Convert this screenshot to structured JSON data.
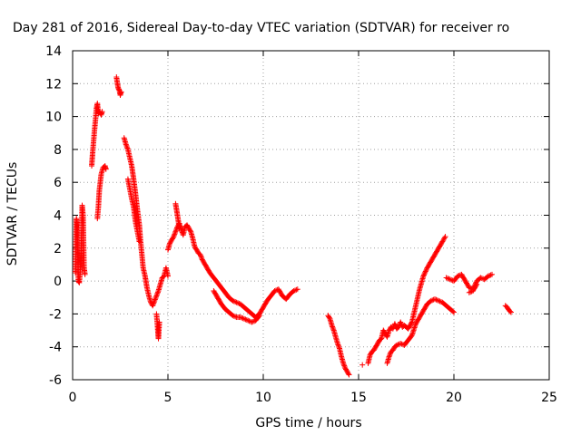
{
  "chart_data": {
    "type": "scatter",
    "title": "Day 281 of 2016, Sidereal Day-to-day VTEC variation (SDTVAR) for receiver ro",
    "xlabel": "GPS time / hours",
    "ylabel": "SDTVAR / TECUs",
    "xlim": [
      0,
      25
    ],
    "ylim": [
      -6,
      14
    ],
    "x_ticks": [
      0,
      5,
      10,
      15,
      20,
      25
    ],
    "y_ticks": [
      -6,
      -4,
      -2,
      0,
      2,
      4,
      6,
      8,
      10,
      12,
      14
    ],
    "grid": true,
    "marker": "+",
    "colors": {
      "points": "#ff0000",
      "grid": "#a0a0a0",
      "axes": "#000000"
    },
    "series": [
      {
        "segments": [
          [
            [
              0.15,
              0.5
            ],
            [
              0.2,
              3.8
            ],
            [
              0.25,
              3.4
            ],
            [
              0.3,
              0.0
            ],
            [
              0.35,
              -0.1
            ],
            [
              0.4,
              0.6
            ],
            [
              0.45,
              1.6
            ],
            [
              0.5,
              4.6
            ],
            [
              0.55,
              4.0
            ],
            [
              0.6,
              0.8
            ],
            [
              0.65,
              0.4
            ]
          ],
          [
            [
              1.0,
              7.0
            ],
            [
              1.05,
              7.8
            ],
            [
              1.1,
              8.5
            ],
            [
              1.15,
              9.2
            ],
            [
              1.2,
              9.8
            ],
            [
              1.25,
              10.5
            ],
            [
              1.3,
              10.8
            ],
            [
              1.35,
              10.2
            ],
            [
              1.4,
              10.3
            ],
            [
              1.5,
              10.1
            ],
            [
              1.55,
              10.3
            ]
          ],
          [
            [
              1.3,
              3.8
            ],
            [
              1.35,
              4.5
            ],
            [
              1.4,
              5.5
            ],
            [
              1.5,
              6.5
            ],
            [
              1.6,
              6.9
            ],
            [
              1.7,
              7.0
            ],
            [
              1.75,
              6.8
            ]
          ],
          [
            [
              2.3,
              12.4
            ],
            [
              2.35,
              12.0
            ],
            [
              2.4,
              11.7
            ],
            [
              2.45,
              11.6
            ],
            [
              2.5,
              11.3
            ],
            [
              2.55,
              11.5
            ]
          ],
          [
            [
              2.7,
              8.7
            ],
            [
              2.8,
              8.3
            ],
            [
              2.9,
              8.0
            ],
            [
              3.0,
              7.5
            ],
            [
              3.1,
              7.0
            ],
            [
              3.2,
              6.2
            ],
            [
              3.3,
              5.3
            ],
            [
              3.4,
              4.3
            ],
            [
              3.5,
              3.4
            ],
            [
              3.55,
              2.6
            ],
            [
              3.6,
              2.0
            ],
            [
              3.65,
              1.4
            ],
            [
              3.7,
              0.8
            ],
            [
              3.8,
              0.3
            ],
            [
              3.9,
              -0.4
            ],
            [
              4.0,
              -0.9
            ],
            [
              4.1,
              -1.3
            ],
            [
              4.2,
              -1.5
            ],
            [
              4.3,
              -1.2
            ],
            [
              4.4,
              -0.9
            ],
            [
              4.5,
              -0.6
            ],
            [
              4.6,
              -0.2
            ],
            [
              4.7,
              0.2
            ],
            [
              4.8,
              0.3
            ],
            [
              4.9,
              0.8
            ],
            [
              5.0,
              0.3
            ]
          ],
          [
            [
              2.9,
              6.2
            ],
            [
              3.0,
              5.6
            ],
            [
              3.1,
              5.0
            ],
            [
              3.2,
              4.5
            ],
            [
              3.3,
              3.6
            ],
            [
              3.4,
              3.0
            ],
            [
              3.5,
              2.4
            ]
          ],
          [
            [
              4.4,
              -2.0
            ],
            [
              4.45,
              -2.7
            ],
            [
              4.5,
              -3.5
            ],
            [
              4.55,
              -2.5
            ]
          ],
          [
            [
              5.0,
              1.9
            ],
            [
              5.1,
              2.3
            ],
            [
              5.2,
              2.5
            ],
            [
              5.3,
              2.7
            ],
            [
              5.4,
              3.0
            ],
            [
              5.5,
              3.3
            ],
            [
              5.6,
              3.5
            ],
            [
              5.7,
              3.1
            ],
            [
              5.8,
              2.8
            ],
            [
              5.9,
              3.3
            ],
            [
              6.0,
              3.4
            ],
            [
              6.1,
              3.2
            ],
            [
              6.2,
              3.0
            ],
            [
              6.3,
              2.6
            ],
            [
              6.4,
              2.1
            ],
            [
              6.5,
              1.9
            ],
            [
              6.6,
              1.7
            ],
            [
              6.7,
              1.6
            ],
            [
              6.8,
              1.3
            ],
            [
              6.9,
              1.1
            ],
            [
              7.0,
              0.9
            ],
            [
              7.2,
              0.5
            ],
            [
              7.4,
              0.2
            ],
            [
              7.6,
              -0.1
            ],
            [
              7.8,
              -0.4
            ],
            [
              8.0,
              -0.7
            ],
            [
              8.2,
              -1.0
            ],
            [
              8.4,
              -1.2
            ],
            [
              8.6,
              -1.3
            ],
            [
              8.8,
              -1.4
            ],
            [
              9.0,
              -1.6
            ],
            [
              9.2,
              -1.8
            ],
            [
              9.4,
              -2.0
            ],
            [
              9.6,
              -2.2
            ],
            [
              9.8,
              -2.0
            ],
            [
              10.0,
              -1.6
            ],
            [
              10.2,
              -1.2
            ],
            [
              10.4,
              -0.9
            ],
            [
              10.6,
              -0.6
            ],
            [
              10.8,
              -0.5
            ],
            [
              11.0,
              -0.9
            ],
            [
              11.2,
              -1.1
            ],
            [
              11.4,
              -0.8
            ],
            [
              11.6,
              -0.6
            ],
            [
              11.8,
              -0.5
            ]
          ],
          [
            [
              5.4,
              4.7
            ],
            [
              5.5,
              4.0
            ],
            [
              5.6,
              3.2
            ]
          ],
          [
            [
              7.4,
              -0.6
            ],
            [
              7.6,
              -1.0
            ],
            [
              7.8,
              -1.4
            ],
            [
              8.0,
              -1.7
            ],
            [
              8.2,
              -1.9
            ],
            [
              8.4,
              -2.1
            ],
            [
              8.6,
              -2.2
            ],
            [
              8.8,
              -2.2
            ],
            [
              9.0,
              -2.3
            ],
            [
              9.2,
              -2.4
            ],
            [
              9.4,
              -2.5
            ],
            [
              9.6,
              -2.4
            ],
            [
              9.8,
              -2.1
            ]
          ],
          [
            [
              13.4,
              -2.1
            ],
            [
              13.5,
              -2.3
            ],
            [
              13.6,
              -2.7
            ],
            [
              13.7,
              -3.0
            ],
            [
              13.8,
              -3.4
            ],
            [
              13.9,
              -3.8
            ],
            [
              14.0,
              -4.1
            ],
            [
              14.1,
              -4.6
            ],
            [
              14.2,
              -5.0
            ],
            [
              14.3,
              -5.3
            ],
            [
              14.4,
              -5.5
            ],
            [
              14.5,
              -5.7
            ]
          ],
          [
            [
              15.2,
              -5.1
            ]
          ],
          [
            [
              15.5,
              -5.0
            ],
            [
              15.6,
              -4.5
            ],
            [
              15.7,
              -4.3
            ],
            [
              15.8,
              -4.2
            ],
            [
              15.9,
              -4.0
            ],
            [
              16.0,
              -3.8
            ],
            [
              16.1,
              -3.6
            ],
            [
              16.2,
              -3.5
            ],
            [
              16.3,
              -3.0
            ],
            [
              16.4,
              -3.2
            ],
            [
              16.5,
              -3.4
            ],
            [
              16.6,
              -3.0
            ],
            [
              16.7,
              -2.8
            ],
            [
              16.8,
              -2.9
            ],
            [
              16.9,
              -2.6
            ],
            [
              17.0,
              -2.9
            ],
            [
              17.1,
              -2.8
            ],
            [
              17.2,
              -2.5
            ],
            [
              17.3,
              -2.8
            ],
            [
              17.4,
              -2.7
            ],
            [
              17.6,
              -2.9
            ],
            [
              17.8,
              -2.5
            ],
            [
              18.0,
              -1.5
            ],
            [
              18.2,
              -0.5
            ],
            [
              18.4,
              0.3
            ],
            [
              18.6,
              0.8
            ],
            [
              18.8,
              1.2
            ],
            [
              19.0,
              1.6
            ],
            [
              19.2,
              2.0
            ],
            [
              19.4,
              2.4
            ],
            [
              19.55,
              2.7
            ]
          ],
          [
            [
              16.5,
              -5.0
            ],
            [
              16.6,
              -4.6
            ],
            [
              16.7,
              -4.3
            ],
            [
              16.8,
              -4.2
            ],
            [
              16.9,
              -4.0
            ],
            [
              17.0,
              -3.9
            ],
            [
              17.2,
              -3.8
            ],
            [
              17.4,
              -3.9
            ],
            [
              17.6,
              -3.6
            ],
            [
              17.8,
              -3.3
            ],
            [
              18.0,
              -2.6
            ],
            [
              18.2,
              -2.2
            ],
            [
              18.4,
              -1.8
            ],
            [
              18.6,
              -1.4
            ],
            [
              18.8,
              -1.2
            ],
            [
              19.0,
              -1.1
            ],
            [
              19.2,
              -1.2
            ],
            [
              19.4,
              -1.3
            ],
            [
              19.6,
              -1.5
            ],
            [
              19.8,
              -1.7
            ],
            [
              20.0,
              -1.9
            ]
          ],
          [
            [
              19.6,
              0.2
            ],
            [
              19.8,
              0.1
            ],
            [
              20.0,
              0.0
            ],
            [
              20.2,
              0.3
            ],
            [
              20.4,
              0.4
            ],
            [
              20.6,
              0.0
            ],
            [
              20.8,
              -0.4
            ],
            [
              21.0,
              -0.5
            ],
            [
              21.2,
              0.0
            ],
            [
              21.4,
              0.2
            ],
            [
              21.6,
              0.1
            ],
            [
              21.8,
              0.3
            ],
            [
              22.0,
              0.4
            ]
          ],
          [
            [
              20.8,
              -0.7
            ],
            [
              21.0,
              -0.6
            ],
            [
              21.2,
              -0.2
            ]
          ],
          [
            [
              22.7,
              -1.5
            ],
            [
              22.8,
              -1.6
            ],
            [
              22.9,
              -1.8
            ],
            [
              23.0,
              -1.9
            ]
          ]
        ]
      }
    ]
  }
}
